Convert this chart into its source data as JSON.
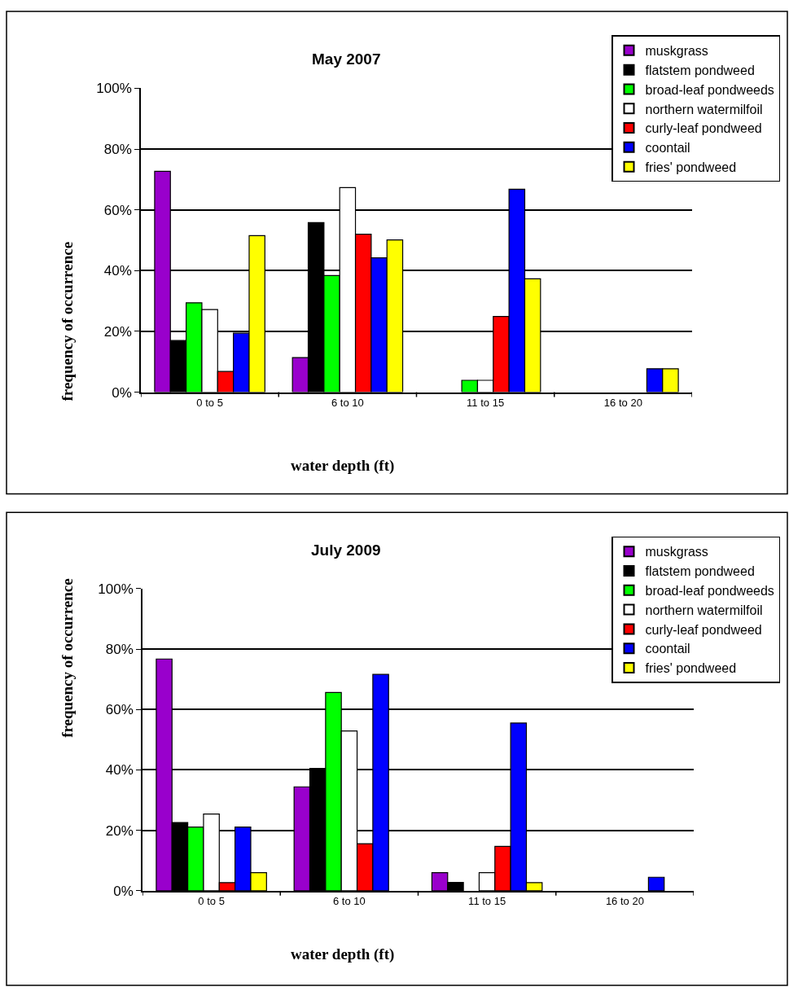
{
  "chart_data": [
    {
      "type": "bar",
      "title": "May 2007",
      "xlabel": "water depth (ft)",
      "ylabel": "frequency of occurrence",
      "categories": [
        "0 to 5",
        "6 to 10",
        "11 to 15",
        "16 to 20"
      ],
      "series": [
        {
          "name": "muskgrass",
          "color": "#9900cc",
          "values": [
            72.7,
            11.4,
            0,
            0
          ]
        },
        {
          "name": "flatstem pondweed",
          "color": "#000000",
          "values": [
            17.0,
            55.8,
            0,
            0
          ]
        },
        {
          "name": "broad-leaf pondweeds",
          "color": "#00ff00",
          "values": [
            29.4,
            38.4,
            3.9,
            0
          ]
        },
        {
          "name": "northern watermilfoil",
          "color": "#ffffff",
          "values": [
            27.2,
            67.3,
            3.9,
            0
          ]
        },
        {
          "name": "curly-leaf pondweed",
          "color": "#ff0000",
          "values": [
            6.8,
            52.0,
            24.9,
            0
          ]
        },
        {
          "name": "coontail",
          "color": "#0000ff",
          "values": [
            19.4,
            44.2,
            66.8,
            7.7
          ]
        },
        {
          "name": "fries' pondweed",
          "color": "#ffff00",
          "values": [
            51.5,
            50.1,
            37.3,
            7.7
          ]
        }
      ],
      "ylim": [
        0,
        100
      ],
      "yticks": [
        {
          "value": 0,
          "label": "0%"
        },
        {
          "value": 20,
          "label": "20%"
        },
        {
          "value": 40,
          "label": "40%"
        },
        {
          "value": 60,
          "label": "60%"
        },
        {
          "value": 80,
          "label": "80%"
        },
        {
          "value": 100,
          "label": "100%"
        }
      ],
      "grid": "y",
      "legend": "top right"
    },
    {
      "type": "bar",
      "title": "July 2009",
      "xlabel": "water depth (ft)",
      "ylabel": "frequency of occurrence",
      "categories": [
        "0 to 5",
        "6 to 10",
        "11 to 15",
        "16 to 20"
      ],
      "series": [
        {
          "name": "muskgrass",
          "color": "#9900cc",
          "values": [
            76.7,
            34.4,
            6.0,
            0
          ]
        },
        {
          "name": "flatstem pondweed",
          "color": "#000000",
          "values": [
            22.6,
            40.5,
            2.8,
            0
          ]
        },
        {
          "name": "broad-leaf pondweeds",
          "color": "#00ff00",
          "values": [
            21.1,
            65.6,
            0,
            0
          ]
        },
        {
          "name": "northern watermilfoil",
          "color": "#ffffff",
          "values": [
            25.4,
            52.9,
            6.0,
            0
          ]
        },
        {
          "name": "curly-leaf pondweed",
          "color": "#ff0000",
          "values": [
            2.7,
            15.6,
            14.7,
            0
          ]
        },
        {
          "name": "coontail",
          "color": "#0000ff",
          "values": [
            21.1,
            71.6,
            55.5,
            4.5
          ]
        },
        {
          "name": "fries' pondweed",
          "color": "#ffff00",
          "values": [
            6.0,
            0,
            2.7,
            0
          ]
        }
      ],
      "ylim": [
        0,
        100
      ],
      "yticks": [
        {
          "value": 0,
          "label": "0%"
        },
        {
          "value": 20,
          "label": "20%"
        },
        {
          "value": 40,
          "label": "40%"
        },
        {
          "value": 60,
          "label": "60%"
        },
        {
          "value": 80,
          "label": "80%"
        },
        {
          "value": 100,
          "label": "100%"
        }
      ],
      "grid": "y",
      "legend": "top right"
    }
  ]
}
